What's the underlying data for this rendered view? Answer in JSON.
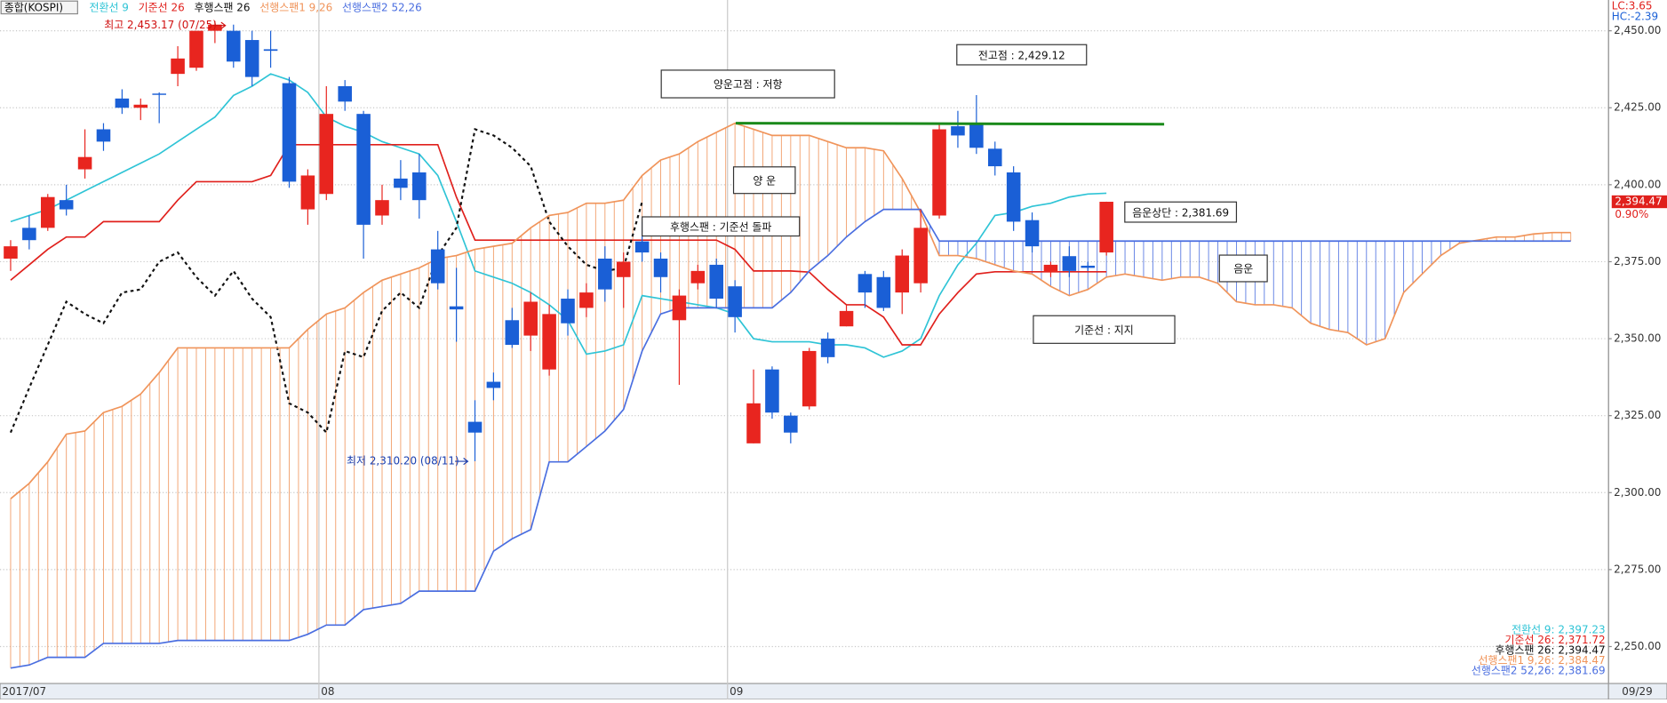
{
  "chart_data": {
    "type": "candlestick",
    "symbol": "종합(KOSPI)",
    "categories": [
      "2017/07",
      null,
      null,
      null,
      null,
      null,
      null,
      null,
      null,
      null,
      null,
      null,
      null,
      null,
      null,
      null,
      null,
      "08",
      null,
      null,
      null,
      null,
      null,
      null,
      null,
      null,
      null,
      null,
      null,
      null,
      null,
      null,
      null,
      null,
      null,
      null,
      null,
      null,
      null,
      "09",
      null,
      null,
      null,
      null,
      null,
      null,
      null,
      null,
      null,
      null,
      null,
      null,
      null,
      null,
      null,
      null,
      null,
      null,
      null,
      null,
      null,
      null,
      null,
      null,
      null,
      null,
      null,
      null,
      null,
      null,
      null,
      null,
      null,
      null,
      null,
      null,
      null,
      null,
      null,
      null,
      null,
      null,
      null,
      null,
      null
    ],
    "last_date": "09/29",
    "ylim": [
      2238,
      2460
    ],
    "yticks": [
      {
        "value": 2250,
        "label": "2,250.00"
      },
      {
        "value": 2275,
        "label": "2,275.00"
      },
      {
        "value": 2300,
        "label": "2,300.00"
      },
      {
        "value": 2325,
        "label": "2,325.00"
      },
      {
        "value": 2350,
        "label": "2,350.00"
      },
      {
        "value": 2375,
        "label": "2,375.00"
      },
      {
        "value": 2400,
        "label": "2,400.00"
      },
      {
        "value": 2425,
        "label": "2,425.00"
      },
      {
        "value": 2450,
        "label": "2,450.00"
      }
    ],
    "grid": true,
    "candles": {
      "name": "종합(KOSPI)",
      "up_color": "#e8251f",
      "down_color": "#1a5fd6",
      "open": [
        2376,
        2386,
        2386,
        2395,
        2405,
        2418,
        2428,
        2425,
        2429.6,
        2436,
        2438,
        2450,
        2450,
        2447,
        2444,
        2433,
        2392,
        2397,
        2432,
        2423,
        2390,
        2402,
        2404,
        2379,
        2360.5,
        2323,
        2336,
        2356,
        2351,
        2340,
        2363,
        2360,
        2376,
        2370,
        2381.6,
        2376,
        2356,
        2368,
        2374,
        2367,
        2316,
        2340,
        2325,
        2328,
        2350,
        2354,
        2371,
        2370,
        2365,
        2368,
        2390,
        2419,
        2420,
        2411.7,
        2404,
        2388.5,
        2371.6,
        2376.8,
        2373.7,
        2378,
        null,
        null,
        null,
        null,
        null,
        null,
        null,
        null,
        null,
        null,
        null,
        null,
        null,
        null,
        null,
        null,
        null,
        null,
        null,
        null,
        null,
        null,
        null,
        null,
        null
      ],
      "high": [
        2382,
        2390,
        2397,
        2400,
        2418,
        2420,
        2431,
        2428,
        2430,
        2445,
        2450,
        2453.17,
        2452,
        2450,
        2450,
        2435,
        2405,
        2432,
        2434,
        2424,
        2400,
        2408,
        2410,
        2385,
        2373,
        2330,
        2339,
        2360,
        2365,
        2361,
        2366,
        2368,
        2380,
        2378,
        2388,
        2378,
        2366,
        2374,
        2376,
        2369,
        2340,
        2341,
        2326,
        2347,
        2352,
        2361,
        2372,
        2372,
        2379,
        2392,
        2420,
        2424,
        2429.12,
        2414,
        2406,
        2391,
        2375,
        2380,
        2375,
        2394.5,
        null,
        null,
        null,
        null,
        null,
        null,
        null,
        null,
        null,
        null,
        null,
        null,
        null,
        null,
        null,
        null,
        null,
        null,
        null,
        null,
        null,
        null,
        null,
        null,
        null
      ],
      "low": [
        2372,
        2379,
        2385,
        2390,
        2402,
        2411,
        2423,
        2421,
        2420,
        2432,
        2437,
        2446,
        2438,
        2432,
        2438,
        2399,
        2387,
        2395,
        2424,
        2376,
        2387,
        2395,
        2389,
        2366,
        2349,
        2310.2,
        2330,
        2347,
        2346,
        2338,
        2351,
        2357,
        2362,
        2360,
        2375,
        2365,
        2335,
        2366,
        2360,
        2352,
        2316,
        2324,
        2316,
        2327,
        2342,
        2354,
        2360,
        2359,
        2358,
        2365,
        2389,
        2412,
        2410,
        2403,
        2385,
        2378,
        2370,
        2370,
        2372,
        2377,
        null,
        null,
        null,
        null,
        null,
        null,
        null,
        null,
        null,
        null,
        null,
        null,
        null,
        null,
        null,
        null,
        null,
        null,
        null,
        null,
        null,
        null,
        null,
        null,
        null
      ],
      "close": [
        2380,
        2382,
        2396,
        2392,
        2409,
        2414,
        2425,
        2426,
        2429.4,
        2441,
        2450,
        2452,
        2440,
        2435,
        2443.5,
        2401,
        2403,
        2423,
        2427,
        2387,
        2395,
        2399,
        2395,
        2368,
        2359.5,
        2319.5,
        2334,
        2348,
        2362,
        2358,
        2355,
        2365,
        2366,
        2375,
        2378,
        2370,
        2364,
        2372,
        2363,
        2357,
        2329,
        2326,
        2319.5,
        2346,
        2344,
        2359,
        2365,
        2360,
        2377,
        2386,
        2418,
        2416,
        2412,
        2406,
        2388,
        2380,
        2374,
        2372,
        2373,
        2394.47,
        null,
        null,
        null,
        null,
        null,
        null,
        null,
        null,
        null,
        null,
        null,
        null,
        null,
        null,
        null,
        null,
        null,
        null,
        null,
        null,
        null,
        null,
        null,
        null,
        null
      ]
    },
    "series": [
      {
        "name": "전환선 9",
        "color": "#2fc4d6",
        "values": [
          2388,
          2390,
          2392,
          2395,
          2398,
          2401,
          2404,
          2407,
          2410,
          2414,
          2418,
          2422,
          2429,
          2432,
          2436,
          2434,
          2430,
          2422,
          2419,
          2417,
          2414,
          2412,
          2410,
          2403,
          2388,
          2372,
          2370,
          2368,
          2365,
          2361,
          2356,
          2345,
          2346,
          2348,
          2364,
          2363,
          2362,
          2361,
          2360,
          2358,
          2350,
          2349,
          2349,
          2349,
          2348,
          2348,
          2347,
          2344,
          2346,
          2350,
          2364,
          2374,
          2381,
          2390,
          2391,
          2393,
          2394,
          2396,
          2397,
          2397.23,
          null,
          null,
          null,
          null,
          null,
          null,
          null,
          null,
          null,
          null,
          null,
          null,
          null,
          null,
          null,
          null,
          null,
          null,
          null,
          null,
          null,
          null,
          null,
          null,
          null
        ]
      },
      {
        "name": "기준선 26",
        "color": "#e0201c",
        "values": [
          2369,
          2374,
          2379,
          2383,
          2383,
          2388,
          2388,
          2388,
          2388,
          2395,
          2401,
          2401,
          2401,
          2401,
          2403,
          2413,
          2413,
          2413,
          2413,
          2413,
          2413,
          2413,
          2413,
          2413,
          2396,
          2382,
          2382,
          2382,
          2382,
          2382,
          2382,
          2382,
          2382,
          2382,
          2382,
          2382,
          2382,
          2382,
          2382,
          2379,
          2372,
          2372,
          2372,
          2371.6,
          2366,
          2361,
          2361,
          2357,
          2348,
          2348,
          2358,
          2365,
          2371,
          2371.72,
          2371.72,
          2371.72,
          2371.72,
          2371.72,
          2371.72,
          2371.72,
          null,
          null,
          null,
          null,
          null,
          null,
          null,
          null,
          null,
          null,
          null,
          null,
          null,
          null,
          null,
          null,
          null,
          null,
          null,
          null,
          null,
          null,
          null,
          null,
          null
        ]
      },
      {
        "name": "후행스팬 26",
        "color": "#111111",
        "dashed": true,
        "values": [
          2319.5,
          2334,
          2348,
          2362,
          2358,
          2355,
          2365,
          2366,
          2375,
          2378,
          2370,
          2364,
          2372,
          2363,
          2357,
          2329,
          2326,
          2319.5,
          2346,
          2344,
          2359,
          2365,
          2360,
          2377,
          2386,
          2418,
          2416,
          2412,
          2406,
          2388,
          2380,
          2374,
          2372,
          2373,
          2394.47,
          null,
          null,
          null,
          null,
          null,
          null,
          null,
          null,
          null,
          null,
          null,
          null,
          null,
          null,
          null,
          null,
          null,
          null,
          null,
          null,
          null,
          null,
          null,
          null,
          null,
          null,
          null,
          null,
          null,
          null,
          null,
          null,
          null,
          null,
          null,
          null,
          null,
          null,
          null,
          null,
          null,
          null,
          null,
          null,
          null,
          null,
          null,
          null,
          null,
          null
        ]
      },
      {
        "name": "선행스팬1 9,26",
        "color": "#f0945a",
        "values": [
          2298,
          2303,
          2310,
          2319,
          2320,
          2326,
          2328,
          2332,
          2339,
          2347,
          2347,
          2347,
          2347,
          2347,
          2347,
          2347,
          2353,
          2358,
          2360,
          2365,
          2369,
          2371,
          2373,
          2376,
          2377,
          2379,
          2380,
          2381,
          2386,
          2390,
          2391,
          2394,
          2394,
          2395,
          2403,
          2408,
          2410,
          2414,
          2417,
          2420,
          2418,
          2416,
          2416,
          2416,
          2414,
          2412,
          2412,
          2411,
          2402,
          2391,
          2377,
          2377,
          2376,
          2374,
          2372,
          2371,
          2367,
          2364,
          2366,
          2370,
          2371,
          2370,
          2369,
          2370,
          2370,
          2368,
          2362,
          2361,
          2361,
          2360,
          2355,
          2353,
          2352,
          2348,
          2350,
          2365,
          2371,
          2377,
          2381,
          2382,
          2383,
          2383,
          2384,
          2384.47,
          2384.47
        ]
      },
      {
        "name": "선행스팬2 52,26",
        "color": "#4a6ee0",
        "values": [
          2243,
          2244,
          2246.5,
          2246.5,
          2246.5,
          2251,
          2251,
          2251,
          2251,
          2252,
          2252,
          2252,
          2252,
          2252,
          2252,
          2252,
          2254,
          2257,
          2257,
          2262,
          2263,
          2264,
          2268,
          2268,
          2268,
          2268,
          2281,
          2285,
          2288,
          2310,
          2310,
          2315,
          2320,
          2327,
          2346,
          2358,
          2360,
          2360,
          2360,
          2360,
          2360,
          2360,
          2365,
          2372,
          2377,
          2383,
          2388,
          2392,
          2392,
          2392,
          2381.69,
          2381.69,
          2381.69,
          2381.69,
          2381.69,
          2381.69,
          2381.69,
          2381.69,
          2381.69,
          2381.69,
          2381.69,
          2381.69,
          2381.69,
          2381.69,
          2381.69,
          2381.69,
          2381.69,
          2381.69,
          2381.69,
          2381.69,
          2381.69,
          2381.69,
          2381.69,
          2381.69,
          2381.69,
          2381.69,
          2381.69,
          2381.69,
          2381.69,
          2381.69,
          2381.69,
          2381.69,
          2381.69,
          2381.69,
          2381.69
        ]
      }
    ],
    "resistance_line": {
      "value": 2420,
      "color": "#1a8a1a"
    },
    "last_value_labels": [
      "전환선 9: 2,397.23",
      "기준선 26: 2,371.72",
      "후행스팬 26: 2,394.47",
      "선행스팬1 9,26: 2,384.47",
      "선행스팬2 52,26: 2,381.69"
    ],
    "price_tag": {
      "value": 2394.47,
      "label": "2,394.47",
      "change": "0.90%"
    },
    "lc": "LC:3.65",
    "hc": "HC:-2.39",
    "annotations": {
      "high": "최고 2,453.17 (07/25)",
      "low": "최저 2,310.20 (08/11)",
      "cloud_top": "양운고점  : 저항",
      "prev_high": "전고점 : 2,429.12",
      "bull_cloud": "양 운",
      "lagging": "후행스팬 : 기준선 돌파",
      "bear_top": "음운상단 : 2,381.69",
      "bear_cloud": "음운",
      "base_support": "기준선  : 지지"
    }
  }
}
